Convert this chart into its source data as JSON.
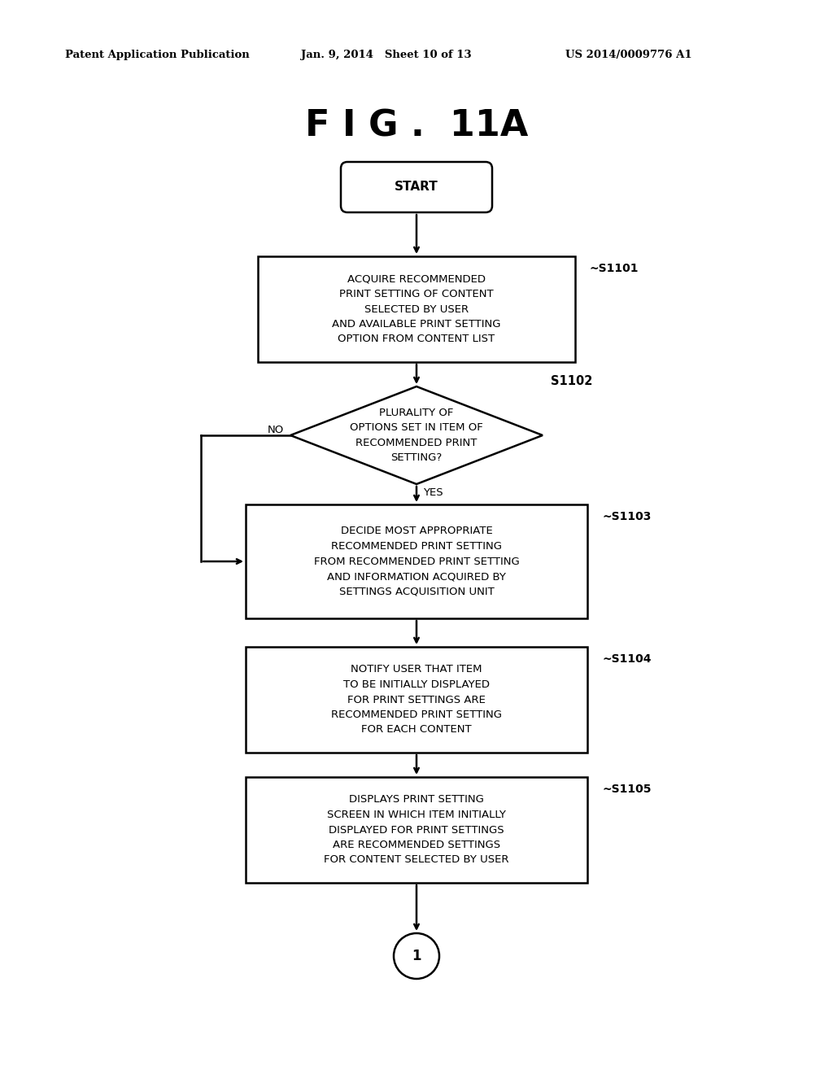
{
  "title": "F I G .  11A",
  "header_left": "Patent Application Publication",
  "header_center": "Jan. 9, 2014   Sheet 10 of 13",
  "header_right": "US 2014/0009776 A1",
  "bg_color": "#ffffff",
  "text_color": "#000000",
  "start_text": "START",
  "s1101_text": "ACQUIRE RECOMMENDED\nPRINT SETTING OF CONTENT\nSELECTED BY USER\nAND AVAILABLE PRINT SETTING\nOPTION FROM CONTENT LIST",
  "s1102_text": "PLURALITY OF\nOPTIONS SET IN ITEM OF\nRECOMMENDED PRINT\nSETTING?",
  "s1103_text": "DECIDE MOST APPROPRIATE\nRECOMMENDED PRINT SETTING\nFROM RECOMMENDED PRINT SETTING\nAND INFORMATION ACQUIRED BY\nSETTINGS ACQUISITION UNIT",
  "s1104_text": "NOTIFY USER THAT ITEM\nTO BE INITIALLY DISPLAYED\nFOR PRINT SETTINGS ARE\nRECOMMENDED PRINT SETTING\nFOR EACH CONTENT",
  "s1105_text": "DISPLAYS PRINT SETTING\nSCREEN IN WHICH ITEM INITIALLY\nDISPLAYED FOR PRINT SETTINGS\nARE RECOMMENDED SETTINGS\nFOR CONTENT SELECTED BY USER",
  "circle_text": "1",
  "yes_label": "YES",
  "no_label": "NO",
  "s1101_label": "~S1101",
  "s1102_label": "S1102",
  "s1103_label": "~S1103",
  "s1104_label": "~S1104",
  "s1105_label": "~S1105"
}
